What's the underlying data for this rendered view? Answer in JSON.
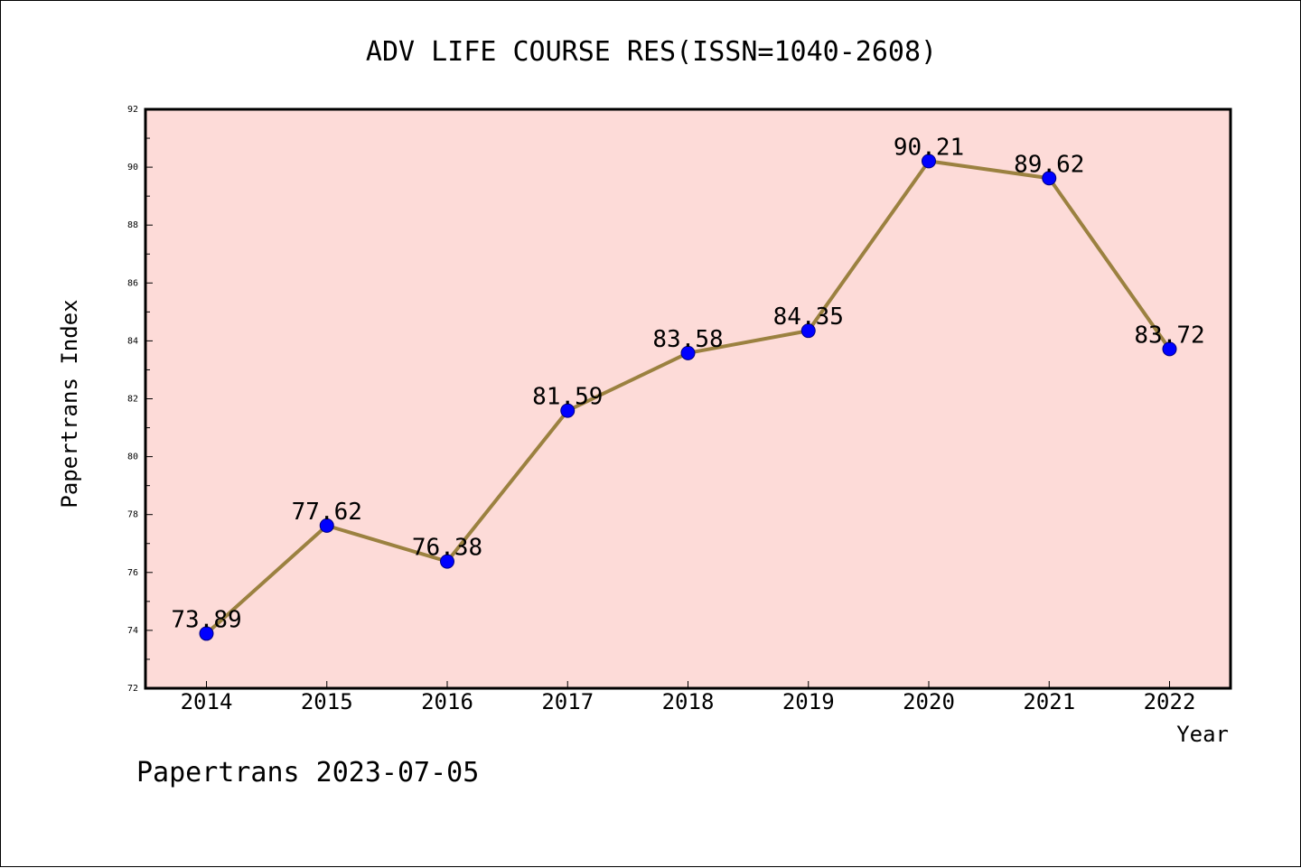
{
  "chart_data": {
    "type": "line",
    "title": "ADV LIFE COURSE RES(ISSN=1040-2608)",
    "xlabel": "Year",
    "ylabel": "Papertrans Index",
    "categories": [
      "2014",
      "2015",
      "2016",
      "2017",
      "2018",
      "2019",
      "2020",
      "2021",
      "2022"
    ],
    "series": [
      {
        "values": [
          73.89,
          77.62,
          76.38,
          81.59,
          83.58,
          84.35,
          90.21,
          89.62,
          83.72
        ],
        "data_labels": [
          "73.89",
          "77.62",
          "76.38",
          "81.59",
          "83.58",
          "84.35",
          "90.21",
          "89.62",
          "83.72"
        ]
      }
    ],
    "ylim": [
      72,
      92
    ],
    "y_ticks": [
      72,
      74,
      76,
      78,
      80,
      82,
      84,
      86,
      88,
      90,
      92
    ],
    "grid": false,
    "legend": "none"
  },
  "footer": {
    "text": "Papertrans 2023-07-05"
  },
  "colors": {
    "plot_background": "#fddbd8",
    "line": "#9b8140",
    "marker": "#0000ff",
    "marker_edge": "#000080",
    "axis": "#000000"
  }
}
